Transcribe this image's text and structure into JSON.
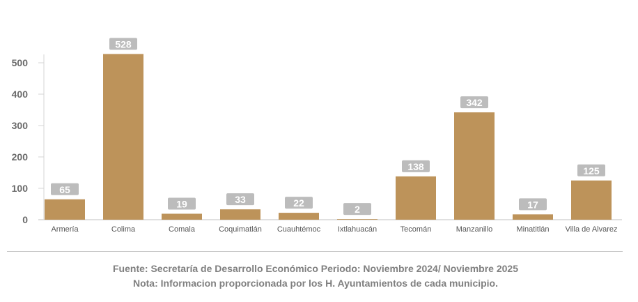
{
  "chart_data": {
    "type": "bar",
    "categories": [
      "Armería",
      "Colima",
      "Comala",
      "Coquimatlán",
      "Cuauhtémoc",
      "Ixtlahuacán",
      "Tecomán",
      "Manzanillo",
      "Minatitlán",
      "Villa de Alvarez"
    ],
    "values": [
      65,
      528,
      19,
      33,
      22,
      2,
      138,
      342,
      17,
      125
    ],
    "ylim": [
      0,
      528
    ],
    "yticks": [
      0,
      100,
      200,
      300,
      400,
      500
    ],
    "grid": false,
    "bar_color": "#bd935a",
    "label_bg": "#bcbcbc"
  },
  "footer": {
    "source": "Fuente: Secretaría de Desarrollo Económico Periodo: Noviembre 2024/ Noviembre 2025",
    "note": "Nota: Informacion proporcionada por los H. Ayuntamientos de cada municipio."
  }
}
